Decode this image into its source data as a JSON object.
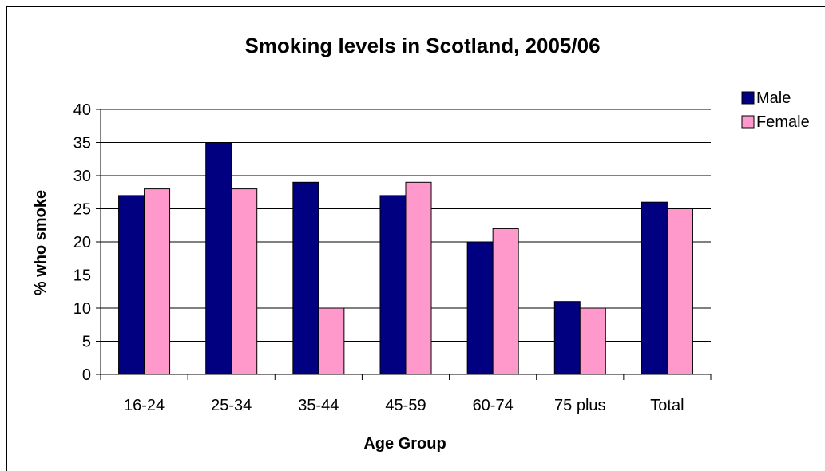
{
  "chart_data": {
    "type": "bar",
    "title": "Smoking levels in Scotland, 2005/06",
    "xlabel": "Age Group",
    "ylabel": "% who smoke",
    "categories": [
      "16-24",
      "25-34",
      "35-44",
      "45-59",
      "60-74",
      "75 plus",
      "Total"
    ],
    "series": [
      {
        "name": "Male",
        "values": [
          27,
          35,
          29,
          27,
          20,
          11,
          26
        ]
      },
      {
        "name": "Female",
        "values": [
          28,
          28,
          10,
          29,
          22,
          10,
          25
        ]
      }
    ],
    "ylim": [
      0,
      40
    ],
    "yticks": [
      "0",
      "5",
      "10",
      "15",
      "20",
      "25",
      "30",
      "35",
      "40"
    ],
    "grid": true,
    "legend_position": "right",
    "colors": {
      "Male": "#000080",
      "Female": "#ff99cc"
    }
  }
}
